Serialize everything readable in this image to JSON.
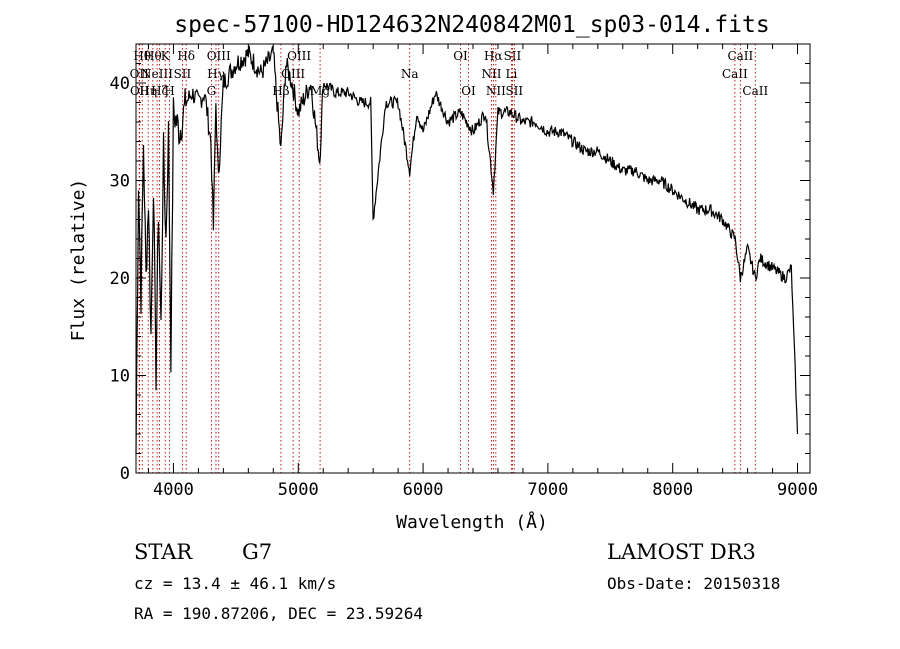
{
  "chart_data": {
    "type": "line",
    "title": "spec-57100-HD124632N240842M01_sp03-014.fits",
    "xlabel": "Wavelength (Å)",
    "ylabel": "Flux (relative)",
    "xlim": [
      3700,
      9100
    ],
    "ylim": [
      0,
      44
    ],
    "xticks": [
      4000,
      5000,
      6000,
      7000,
      8000,
      9000
    ],
    "yticks": [
      0,
      10,
      20,
      30,
      40
    ],
    "grid": false,
    "series": [
      {
        "name": "flux",
        "x": [
          3700,
          3720,
          3740,
          3760,
          3780,
          3800,
          3820,
          3840,
          3860,
          3880,
          3900,
          3920,
          3940,
          3960,
          3980,
          4000,
          4050,
          4100,
          4150,
          4200,
          4250,
          4300,
          4320,
          4340,
          4360,
          4400,
          4450,
          4500,
          4600,
          4700,
          4800,
          4861,
          4900,
          4950,
          5000,
          5100,
          5172,
          5200,
          5300,
          5400,
          5500,
          5580,
          5600,
          5700,
          5800,
          5893,
          5950,
          6000,
          6100,
          6200,
          6300,
          6400,
          6500,
          6563,
          6600,
          6700,
          6800,
          6900,
          7000,
          7100,
          7200,
          7300,
          7400,
          7500,
          7600,
          7700,
          7800,
          7900,
          8000,
          8100,
          8200,
          8300,
          8400,
          8500,
          8542,
          8600,
          8662,
          8700,
          8800,
          8900,
          8950,
          9000
        ],
        "y": [
          2,
          30,
          18,
          34,
          20,
          28,
          14,
          30,
          10,
          27,
          15,
          33,
          24,
          35,
          12,
          37,
          35,
          38,
          39,
          38,
          39,
          34,
          25,
          38,
          30,
          40,
          41,
          42,
          43,
          41,
          43,
          33,
          42,
          40,
          37,
          40,
          32,
          40,
          39,
          39,
          38,
          38,
          26,
          38,
          38,
          31,
          37,
          35,
          39,
          36,
          37,
          35,
          37,
          29,
          37,
          37,
          36,
          36,
          35,
          35,
          34,
          33,
          33,
          32,
          31,
          31,
          30,
          30,
          29,
          28,
          27,
          27,
          26,
          24,
          20,
          23,
          20,
          22,
          21,
          20,
          21,
          4
        ]
      }
    ],
    "line_markers": [
      {
        "wl": 3726,
        "labels": [
          "OII"
        ],
        "tier": 1
      },
      {
        "wl": 3729,
        "labels": [
          "OII"
        ],
        "tier": 2
      },
      {
        "wl": 3750,
        "labels": [
          "Hθ"
        ],
        "tier": 0
      },
      {
        "wl": 3798,
        "labels": [
          "Hη"
        ],
        "tier": 2
      },
      {
        "wl": 3835,
        "labels": [
          "Hθ"
        ],
        "tier": 0
      },
      {
        "wl": 3869,
        "labels": [
          "NeIII"
        ],
        "tier": 1
      },
      {
        "wl": 3889,
        "labels": [
          "Hζ"
        ],
        "tier": 2
      },
      {
        "wl": 3934,
        "labels": [
          "K"
        ],
        "tier": 0
      },
      {
        "wl": 3969,
        "labels": [
          "H"
        ],
        "tier": 2
      },
      {
        "wl": 4072,
        "labels": [
          "SII"
        ],
        "tier": 1
      },
      {
        "wl": 4102,
        "labels": [
          "Hδ"
        ],
        "tier": 0
      },
      {
        "wl": 4304,
        "labels": [
          "G"
        ],
        "tier": 2
      },
      {
        "wl": 4341,
        "labels": [
          "Hγ"
        ],
        "tier": 1
      },
      {
        "wl": 4363,
        "labels": [
          "OIII"
        ],
        "tier": 0
      },
      {
        "wl": 4861,
        "labels": [
          "Hβ"
        ],
        "tier": 2
      },
      {
        "wl": 4959,
        "labels": [
          "OIII"
        ],
        "tier": 1
      },
      {
        "wl": 5007,
        "labels": [
          "OIII"
        ],
        "tier": 0
      },
      {
        "wl": 5175,
        "labels": [
          "Mg"
        ],
        "tier": 2
      },
      {
        "wl": 5893,
        "labels": [
          "Na"
        ],
        "tier": 1
      },
      {
        "wl": 6300,
        "labels": [
          "OI"
        ],
        "tier": 0
      },
      {
        "wl": 6364,
        "labels": [
          "OI"
        ],
        "tier": 2
      },
      {
        "wl": 6548,
        "labels": [
          "NII"
        ],
        "tier": 1
      },
      {
        "wl": 6563,
        "labels": [
          "Hα"
        ],
        "tier": 0
      },
      {
        "wl": 6583,
        "labels": [
          "NII"
        ],
        "tier": 2
      },
      {
        "wl": 6708,
        "labels": [
          "Li"
        ],
        "tier": 1
      },
      {
        "wl": 6716,
        "labels": [
          "SII"
        ],
        "tier": 0
      },
      {
        "wl": 6731,
        "labels": [
          "SII"
        ],
        "tier": 2
      },
      {
        "wl": 8498,
        "labels": [
          "CaII"
        ],
        "tier": 1
      },
      {
        "wl": 8542,
        "labels": [
          "CaII"
        ],
        "tier": 0
      },
      {
        "wl": 8662,
        "labels": [
          "CaII"
        ],
        "tier": 2
      }
    ]
  },
  "info": {
    "object_class": "STAR",
    "subclass": "G7",
    "survey": "LAMOST DR3",
    "cz": "cz = 13.4 ± 46.1 km/s",
    "obs_date": "Obs-Date: 20150318",
    "coords": "RA = 190.87206, DEC =  23.59264"
  }
}
